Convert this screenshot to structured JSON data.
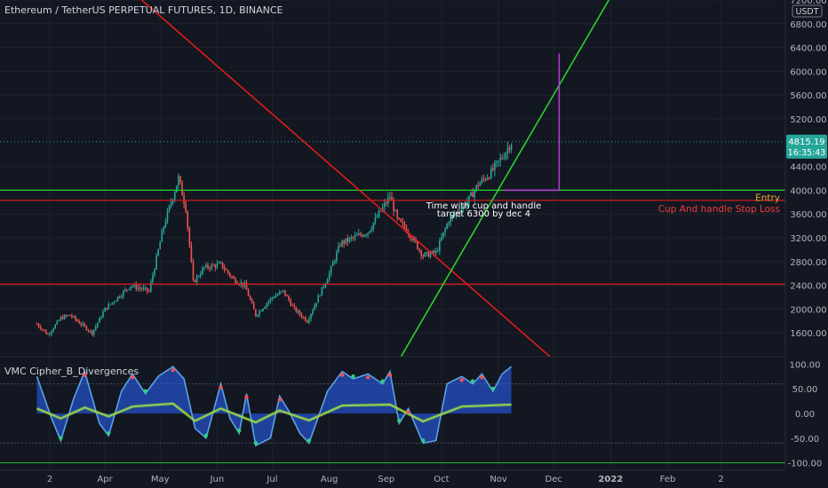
{
  "header": {
    "title": "Ethereum / TetherUS PERPETUAL FUTURES, 1D, BINANCE",
    "currency": "USDT"
  },
  "indicator": {
    "title": "VMC Cipher_B_Divergences"
  },
  "price_badge": {
    "price": "4815.19",
    "countdown": "16:35:43"
  },
  "colors": {
    "background": "#131722",
    "up_candle": "#26a69a",
    "down_candle": "#ef5350",
    "red_line": "#e01b1b",
    "green_line": "#27d32e",
    "purple_line": "#b23ecf"
  },
  "chart_data": [
    {
      "type": "candlestick",
      "title": "Ethereum / TetherUS PERPETUAL FUTURES, 1D, BINANCE",
      "ylabel": "USDT",
      "ylim": [
        1200,
        7200
      ],
      "y_ticks": [
        1600,
        2000,
        2400,
        2800,
        3200,
        3600,
        4000,
        4400,
        5200,
        5600,
        6000,
        6400,
        6800,
        7200
      ],
      "y_tick_labels": [
        "1600.00",
        "2000.00",
        "2400.00",
        "2800.00",
        "3200.00",
        "3600.00",
        "4000.00",
        "4400.00",
        "5200.00",
        "5600.00",
        "6000.00",
        "6400.00",
        "6800.00",
        "7200.00"
      ],
      "x_tick_labels": [
        "2",
        "Apr",
        "May",
        "Jun",
        "Jul",
        "Aug",
        "Sep",
        "Oct",
        "Nov",
        "Dec",
        "2022",
        "Feb",
        "2"
      ],
      "x_tick_dates": [
        "2021-03-02",
        "2021-04-01",
        "2021-05-01",
        "2021-06-01",
        "2021-07-01",
        "2021-08-01",
        "2021-09-01",
        "2021-10-01",
        "2021-11-01",
        "2021-12-01",
        "2022-01-01",
        "2022-02-01",
        "2022-03-02"
      ],
      "price_path": [
        {
          "date": "2021-02-23",
          "price": 1750
        },
        {
          "date": "2021-03-01",
          "price": 1570
        },
        {
          "date": "2021-03-08",
          "price": 1850
        },
        {
          "date": "2021-03-13",
          "price": 1900
        },
        {
          "date": "2021-03-25",
          "price": 1600
        },
        {
          "date": "2021-04-01",
          "price": 2000
        },
        {
          "date": "2021-04-15",
          "price": 2400
        },
        {
          "date": "2021-04-25",
          "price": 2300
        },
        {
          "date": "2021-05-03",
          "price": 3400
        },
        {
          "date": "2021-05-11",
          "price": 4200
        },
        {
          "date": "2021-05-15",
          "price": 3700
        },
        {
          "date": "2021-05-19",
          "price": 2450
        },
        {
          "date": "2021-05-25",
          "price": 2700
        },
        {
          "date": "2021-06-03",
          "price": 2750
        },
        {
          "date": "2021-06-10",
          "price": 2500
        },
        {
          "date": "2021-06-16",
          "price": 2400
        },
        {
          "date": "2021-06-22",
          "price": 1900
        },
        {
          "date": "2021-07-01",
          "price": 2200
        },
        {
          "date": "2021-07-07",
          "price": 2300
        },
        {
          "date": "2021-07-13",
          "price": 2000
        },
        {
          "date": "2021-07-20",
          "price": 1800
        },
        {
          "date": "2021-08-01",
          "price": 2600
        },
        {
          "date": "2021-08-07",
          "price": 3100
        },
        {
          "date": "2021-08-14",
          "price": 3200
        },
        {
          "date": "2021-08-22",
          "price": 3300
        },
        {
          "date": "2021-09-03",
          "price": 3900
        },
        {
          "date": "2021-09-07",
          "price": 3500
        },
        {
          "date": "2021-09-13",
          "price": 3300
        },
        {
          "date": "2021-09-21",
          "price": 2900
        },
        {
          "date": "2021-09-28",
          "price": 2950
        },
        {
          "date": "2021-10-05",
          "price": 3500
        },
        {
          "date": "2021-10-15",
          "price": 3800
        },
        {
          "date": "2021-10-21",
          "price": 4100
        },
        {
          "date": "2021-10-28",
          "price": 4300
        },
        {
          "date": "2021-11-04",
          "price": 4600
        },
        {
          "date": "2021-11-08",
          "price": 4815
        }
      ],
      "current_price": 4815.19,
      "countdown": "16:35:43",
      "horizontal_lines": [
        {
          "name": "Entry",
          "price": 4000,
          "color": "#27d32e"
        },
        {
          "name": "Cup And handle Stop Loss",
          "price": 3830,
          "color": "#e01b1b"
        },
        {
          "price": 2420,
          "color": "#e01b1b"
        },
        {
          "price": 4815.19,
          "color": "#26a69a",
          "style": "dotted"
        }
      ],
      "trend_lines": [
        {
          "color": "#e01b1b",
          "from": {
            "date": "2021-04-21",
            "price": 7200
          },
          "to": {
            "date": "2021-11-29",
            "price": 1200
          }
        },
        {
          "color": "#27d32e",
          "from": {
            "date": "2021-09-09",
            "price": 1200
          },
          "to": {
            "date": "2021-12-31",
            "price": 7200
          }
        }
      ],
      "target_marker": {
        "color": "#b23ecf",
        "date": "2021-12-04",
        "from_price": 4000,
        "to_price": 6300
      },
      "annotations": [
        {
          "text": "Time with cup and handle",
          "date": "2021-10-24",
          "price": 3750
        },
        {
          "text": "target  6300 by dec 4",
          "date": "2021-10-24",
          "price": 3620
        }
      ]
    },
    {
      "type": "line",
      "title": "VMC Cipher_B_Divergences",
      "ylim": [
        -115,
        115
      ],
      "y_ticks": [
        100,
        50,
        0,
        -50,
        -100
      ],
      "y_tick_labels": [
        "100.00",
        "50.00",
        "0.00",
        "-50.00",
        "-100.00"
      ],
      "series": [
        {
          "color": "#5ba3e6",
          "points": [
            {
              "date": "2021-02-23",
              "value": 75
            },
            {
              "date": "2021-03-03",
              "value": -10
            },
            {
              "date": "2021-03-08",
              "value": -55
            },
            {
              "date": "2021-03-15",
              "value": 30
            },
            {
              "date": "2021-03-21",
              "value": 85
            },
            {
              "date": "2021-03-29",
              "value": -20
            },
            {
              "date": "2021-04-03",
              "value": -45
            },
            {
              "date": "2021-04-10",
              "value": 45
            },
            {
              "date": "2021-04-16",
              "value": 80
            },
            {
              "date": "2021-04-23",
              "value": 40
            },
            {
              "date": "2021-04-30",
              "value": 75
            },
            {
              "date": "2021-05-08",
              "value": 95
            },
            {
              "date": "2021-05-14",
              "value": 70
            },
            {
              "date": "2021-05-20",
              "value": -30
            },
            {
              "date": "2021-05-26",
              "value": -50
            },
            {
              "date": "2021-06-03",
              "value": 60
            },
            {
              "date": "2021-06-08",
              "value": -10
            },
            {
              "date": "2021-06-13",
              "value": -40
            },
            {
              "date": "2021-06-17",
              "value": 40
            },
            {
              "date": "2021-06-22",
              "value": -65
            },
            {
              "date": "2021-06-30",
              "value": -50
            },
            {
              "date": "2021-07-05",
              "value": 35
            },
            {
              "date": "2021-07-10",
              "value": 5
            },
            {
              "date": "2021-07-16",
              "value": -40
            },
            {
              "date": "2021-07-21",
              "value": -60
            },
            {
              "date": "2021-07-31",
              "value": 45
            },
            {
              "date": "2021-08-08",
              "value": 85
            },
            {
              "date": "2021-08-14",
              "value": 70
            },
            {
              "date": "2021-08-22",
              "value": 80
            },
            {
              "date": "2021-08-30",
              "value": 60
            },
            {
              "date": "2021-09-03",
              "value": 85
            },
            {
              "date": "2021-09-08",
              "value": -20
            },
            {
              "date": "2021-09-13",
              "value": 10
            },
            {
              "date": "2021-09-21",
              "value": -60
            },
            {
              "date": "2021-09-28",
              "value": -55
            },
            {
              "date": "2021-10-04",
              "value": 60
            },
            {
              "date": "2021-10-12",
              "value": 75
            },
            {
              "date": "2021-10-18",
              "value": 60
            },
            {
              "date": "2021-10-23",
              "value": 80
            },
            {
              "date": "2021-10-29",
              "value": 45
            },
            {
              "date": "2021-11-03",
              "value": 80
            },
            {
              "date": "2021-11-08",
              "value": 95
            }
          ]
        },
        {
          "color": "#f0e040",
          "points": [
            {
              "date": "2021-02-23",
              "value": 10
            },
            {
              "date": "2021-03-08",
              "value": -10
            },
            {
              "date": "2021-03-21",
              "value": 12
            },
            {
              "date": "2021-04-03",
              "value": -6
            },
            {
              "date": "2021-04-16",
              "value": 14
            },
            {
              "date": "2021-05-08",
              "value": 20
            },
            {
              "date": "2021-05-20",
              "value": -15
            },
            {
              "date": "2021-06-03",
              "value": 10
            },
            {
              "date": "2021-06-22",
              "value": -18
            },
            {
              "date": "2021-07-05",
              "value": 6
            },
            {
              "date": "2021-07-21",
              "value": -14
            },
            {
              "date": "2021-08-08",
              "value": 16
            },
            {
              "date": "2021-09-03",
              "value": 18
            },
            {
              "date": "2021-09-21",
              "value": -16
            },
            {
              "date": "2021-10-12",
              "value": 14
            },
            {
              "date": "2021-11-08",
              "value": 18
            }
          ]
        }
      ],
      "reference_lines": [
        {
          "value": 60,
          "color": "#6d7079"
        },
        {
          "value": -60,
          "color": "#6d7079"
        },
        {
          "value": -100,
          "color": "#27d32e"
        }
      ]
    }
  ]
}
